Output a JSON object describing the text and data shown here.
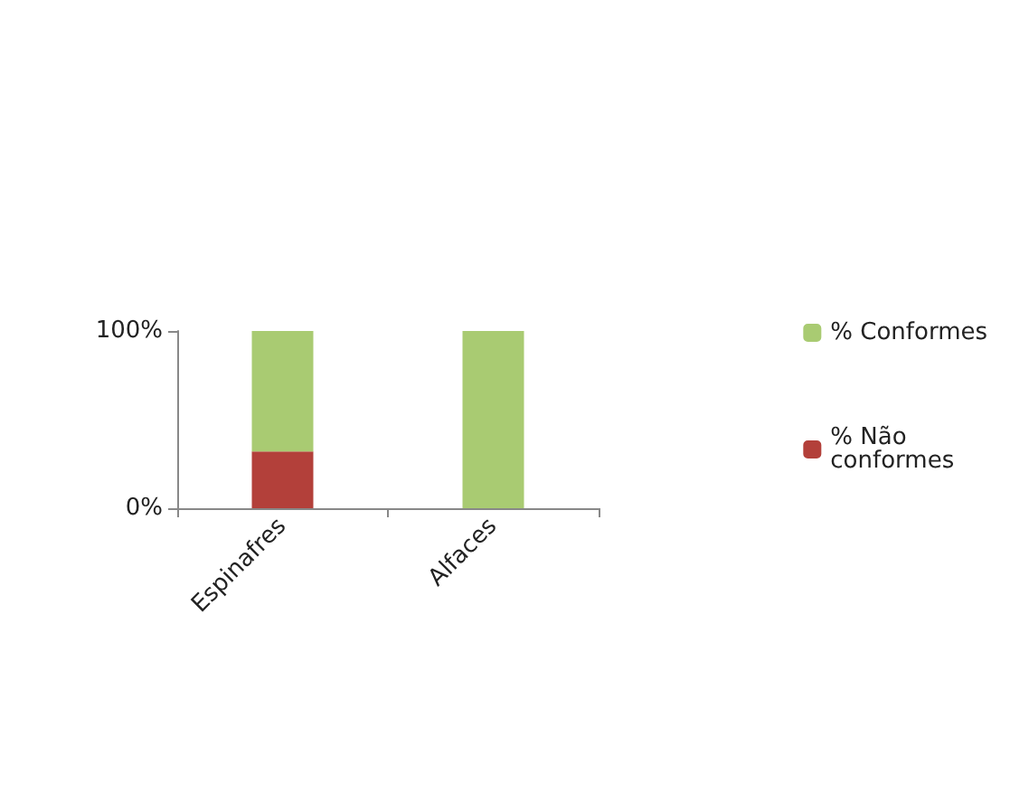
{
  "chart_data": {
    "type": "bar",
    "stacked": true,
    "categories": [
      "Espinafres",
      "Alfaces"
    ],
    "series": [
      {
        "name": "% Não conformes",
        "color": "#b3403a",
        "values": [
          32,
          0
        ]
      },
      {
        "name": "% Conformes",
        "color": "#a9cb72",
        "values": [
          68,
          100
        ]
      }
    ],
    "ylim": [
      0,
      100
    ],
    "yticks": [
      {
        "value": 0,
        "label": "0%"
      },
      {
        "value": 100,
        "label": "100%"
      }
    ],
    "grid": false,
    "legend": "right"
  }
}
